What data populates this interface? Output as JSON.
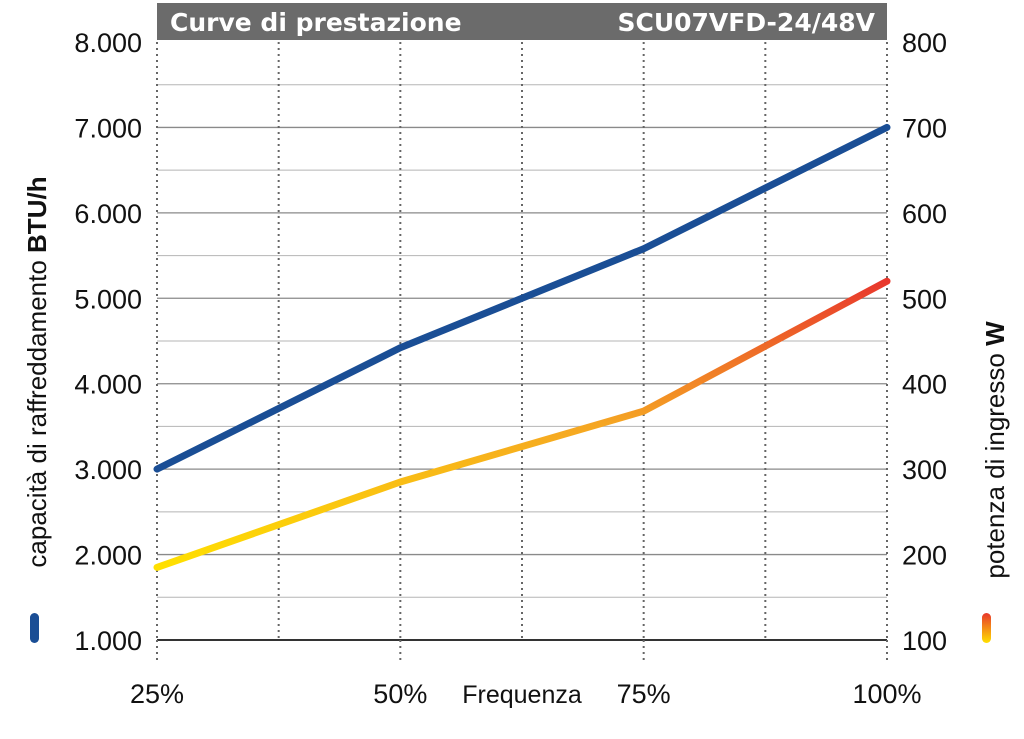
{
  "header": {
    "title": "Curve di prestazione",
    "model": "SCU07VFD-24/48V"
  },
  "chart_data": {
    "type": "line",
    "title": "Curve di prestazione",
    "subtitle": "SCU07VFD-24/48V",
    "xlabel": "Frequenza",
    "ylabel_left": {
      "text": "capacità di raffreddamento ",
      "unit": "BTU/h"
    },
    "ylabel_right": {
      "text": "potenza di ingresso ",
      "unit": "W"
    },
    "x_ticks": [
      "25%",
      "50%",
      "75%",
      "100%"
    ],
    "x_values": [
      25,
      50,
      75,
      100
    ],
    "xlim": [
      25,
      100
    ],
    "y_left_ticks": [
      "1.000",
      "2.000",
      "3.000",
      "4.000",
      "5.000",
      "6.000",
      "7.000",
      "8.000"
    ],
    "y_left_lim": [
      1000,
      8000
    ],
    "y_right_ticks": [
      "100",
      "200",
      "300",
      "400",
      "500",
      "600",
      "700",
      "800"
    ],
    "y_right_lim": [
      100,
      800
    ],
    "grid": true,
    "series": [
      {
        "axis": "left",
        "color": "#1a4e95",
        "x": [
          25,
          50,
          75,
          100
        ],
        "y": [
          3000,
          4420,
          5580,
          7000
        ]
      },
      {
        "axis": "right",
        "color_gradient": [
          "#ffe000",
          "#f5a623",
          "#e8372c"
        ],
        "x": [
          25,
          50,
          75,
          100
        ],
        "y": [
          185,
          285,
          368,
          520
        ]
      }
    ]
  }
}
